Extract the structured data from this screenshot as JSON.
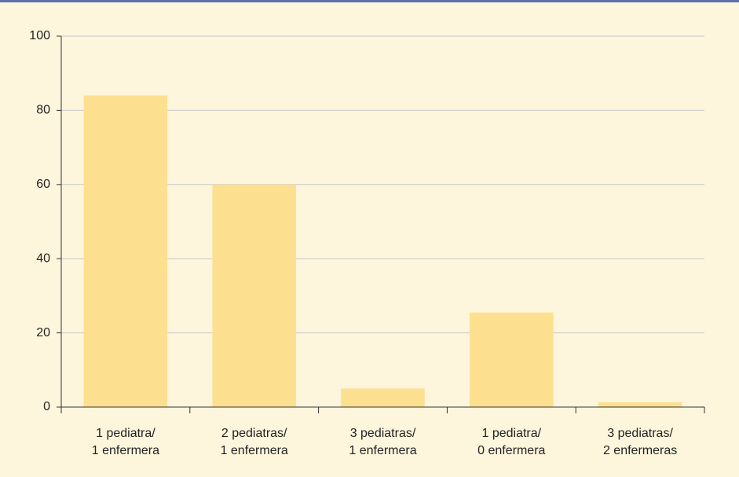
{
  "chart_data": {
    "type": "bar",
    "categories": [
      [
        "1 pediatra/",
        "1 enfermera"
      ],
      [
        "2 pediatras/",
        "1 enfermera"
      ],
      [
        "3 pediatras/",
        "1 enfermera"
      ],
      [
        "1 pediatra/",
        "0 enfermera"
      ],
      [
        "3 pediatras/",
        "2 enfermeras"
      ]
    ],
    "values": [
      84,
      60,
      5,
      25.5,
      1.3
    ],
    "color": "#fde08f",
    "ylim": [
      0,
      100
    ],
    "yticks": [
      0,
      20,
      40,
      60,
      80,
      100
    ],
    "grid": true
  }
}
